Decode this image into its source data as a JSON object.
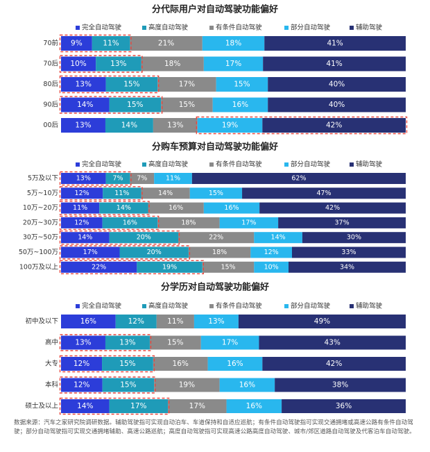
{
  "colors": {
    "完全自动驾驶": "#2c3dd9",
    "高度自动驾驶": "#1f9bb8",
    "有条件自动驾驶": "#8a8a8a",
    "部分自动驾驶": "#29b7ee",
    "辅助驾驶": "#283174",
    "highlight": "#e8453c"
  },
  "legend": [
    "完全自动驾驶",
    "高度自动驾驶",
    "有条件自动驾驶",
    "部分自动驾驶",
    "辅助驾驶"
  ],
  "chart_data": [
    {
      "type": "bar",
      "stacked": "horizontal-100%",
      "title": "分代际用户对自动驾驶功能偏好",
      "categories": [
        "70前",
        "70后",
        "80后",
        "90后",
        "00后"
      ],
      "series": [
        {
          "name": "完全自动驾驶",
          "values": [
            9,
            10,
            13,
            14,
            13
          ]
        },
        {
          "name": "高度自动驾驶",
          "values": [
            11,
            13,
            15,
            15,
            14
          ]
        },
        {
          "name": "有条件自动驾驶",
          "values": [
            21,
            18,
            17,
            15,
            13
          ]
        },
        {
          "name": "部分自动驾驶",
          "values": [
            18,
            17,
            15,
            16,
            19
          ]
        },
        {
          "name": "辅助驾驶",
          "values": [
            41,
            41,
            40,
            40,
            42
          ]
        }
      ],
      "labels": [
        [
          "9%",
          "11%",
          "21%",
          "18%",
          "41%"
        ],
        [
          "10%",
          "13%",
          "18%",
          "17%",
          "41%"
        ],
        [
          "13%",
          "15%",
          "17%",
          "15%",
          "40%"
        ],
        [
          "14%",
          "15%",
          "15%",
          "16%",
          "40%"
        ],
        [
          "13%",
          "14%",
          "13%",
          "19%",
          "42%"
        ]
      ],
      "highlights": [
        [
          0,
          0,
          1
        ],
        [
          1,
          0,
          1
        ],
        [
          2,
          0,
          1
        ],
        [
          3,
          0,
          1
        ],
        [
          4,
          3,
          4
        ]
      ]
    },
    {
      "type": "bar",
      "stacked": "horizontal-100%",
      "title": "分购车预算对自动驾驶功能偏好",
      "categories": [
        "5万及以下",
        "5万~10万",
        "10万~20万",
        "20万~30万",
        "30万~50万",
        "50万~100万",
        "100万及以上"
      ],
      "series": [
        {
          "name": "完全自动驾驶",
          "values": [
            13,
            12,
            11,
            12,
            14,
            17,
            22
          ]
        },
        {
          "name": "高度自动驾驶",
          "values": [
            7,
            11,
            14,
            16,
            20,
            20,
            19
          ]
        },
        {
          "name": "有条件自动驾驶",
          "values": [
            7,
            14,
            16,
            18,
            22,
            18,
            15
          ]
        },
        {
          "name": "部分自动驾驶",
          "values": [
            11,
            15,
            16,
            17,
            14,
            12,
            10
          ]
        },
        {
          "name": "辅助驾驶",
          "values": [
            62,
            47,
            42,
            37,
            30,
            33,
            34
          ]
        }
      ],
      "labels": [
        [
          "13%",
          "7%",
          "7%",
          "11%",
          "62%"
        ],
        [
          "12%",
          "11%",
          "14%",
          "15%",
          "47%"
        ],
        [
          "11%",
          "14%",
          "16%",
          "16%",
          "42%"
        ],
        [
          "12%",
          "16%",
          "18%",
          "17%",
          "37%"
        ],
        [
          "14%",
          "20%",
          "22%",
          "14%",
          "30%"
        ],
        [
          "17%",
          "20%",
          "18%",
          "12%",
          "33%"
        ],
        [
          "22%",
          "19%",
          "15%",
          "10%",
          "34%"
        ]
      ],
      "highlights": [
        [
          0,
          0,
          1
        ],
        [
          1,
          0,
          1
        ],
        [
          2,
          0,
          1
        ],
        [
          3,
          0,
          1
        ],
        [
          4,
          0,
          1
        ],
        [
          5,
          0,
          1
        ],
        [
          6,
          0,
          1
        ]
      ]
    },
    {
      "type": "bar",
      "stacked": "horizontal-100%",
      "title": "分学历对自动驾驶功能偏好",
      "categories": [
        "初中及以下",
        "高中",
        "大专",
        "本科",
        "硕士及以上"
      ],
      "series": [
        {
          "name": "完全自动驾驶",
          "values": [
            16,
            13,
            12,
            12,
            14
          ]
        },
        {
          "name": "高度自动驾驶",
          "values": [
            12,
            13,
            15,
            15,
            17
          ]
        },
        {
          "name": "有条件自动驾驶",
          "values": [
            11,
            15,
            16,
            19,
            17
          ]
        },
        {
          "name": "部分自动驾驶",
          "values": [
            13,
            17,
            16,
            16,
            16
          ]
        },
        {
          "name": "辅助驾驶",
          "values": [
            49,
            43,
            42,
            38,
            36
          ]
        }
      ],
      "labels": [
        [
          "16%",
          "12%",
          "11%",
          "13%",
          "49%"
        ],
        [
          "13%",
          "13%",
          "15%",
          "17%",
          "43%"
        ],
        [
          "12%",
          "15%",
          "16%",
          "16%",
          "42%"
        ],
        [
          "12%",
          "15%",
          "19%",
          "16%",
          "38%"
        ],
        [
          "14%",
          "17%",
          "17%",
          "16%",
          "36%"
        ]
      ],
      "highlights": [
        [
          1,
          0,
          1
        ],
        [
          2,
          0,
          1
        ],
        [
          3,
          0,
          1
        ],
        [
          4,
          0,
          1
        ]
      ]
    }
  ],
  "footnote": "数据来源：汽车之家研究院调研数据。辅助驾驶指可实现自动泊车、车道保持和自适应巡航；有条件自动驾驶指可实现交通拥堵或高速公路有条件自动驾驶；部分自动驾驶指可实现交通拥堵辅助、高速公路巡航；高度自动驾驶指可实现高速公路高度自动驾驶、城市/郊区道路自动驾驶及代客泊车自动驾驶。"
}
